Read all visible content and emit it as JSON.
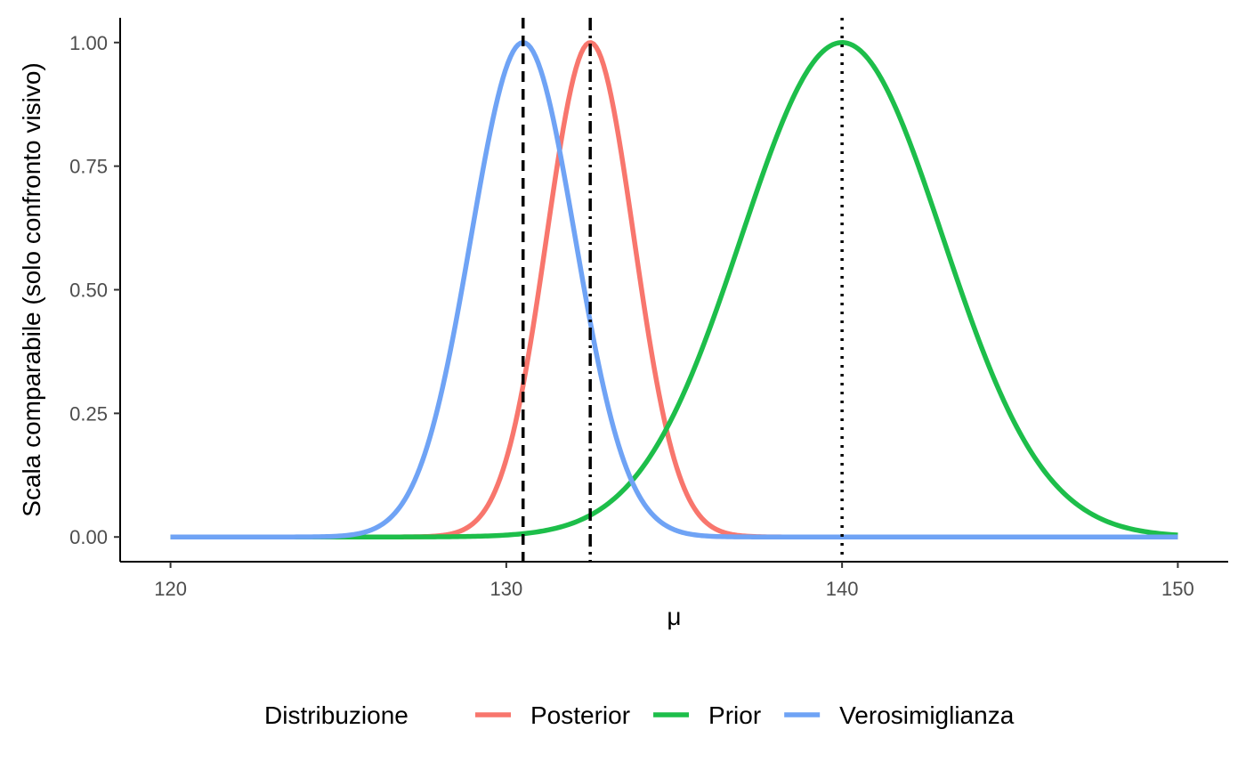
{
  "chart_data": {
    "type": "line",
    "title": "",
    "xlabel": "μ",
    "ylabel": "Scala comparabile (solo confronto visivo)",
    "xlim": [
      118.5,
      151.5
    ],
    "ylim": [
      -0.05,
      1.05
    ],
    "x_ticks": [
      120,
      130,
      140,
      150
    ],
    "x_tick_labels": [
      "120",
      "130",
      "140",
      "150"
    ],
    "y_ticks": [
      0,
      0.25,
      0.5,
      0.75,
      1
    ],
    "y_tick_labels": [
      "0.00",
      "0.25",
      "0.50",
      "0.75",
      "1.00"
    ],
    "x_range": [
      120,
      150
    ],
    "grid": false,
    "legend": {
      "title": "Distribuzione",
      "placement": "bottom"
    },
    "series": [
      {
        "name": "Posterior",
        "color": "#F8766D",
        "mean": 132.5,
        "sd": 1.3,
        "shape": "normal-scaled-to-peak-1"
      },
      {
        "name": "Prior",
        "color": "#1DBE4A",
        "mean": 140,
        "sd": 3.0,
        "shape": "normal-scaled-to-peak-1"
      },
      {
        "name": "Verosimiglianza",
        "color": "#6FA3F5",
        "mean": 130.5,
        "sd": 1.55,
        "shape": "normal-scaled-to-peak-1"
      }
    ],
    "vlines": [
      {
        "x": 130.5,
        "style": "dashed",
        "color": "#000000"
      },
      {
        "x": 132.5,
        "style": "dashdot",
        "color": "#000000"
      },
      {
        "x": 140,
        "style": "dotted",
        "color": "#000000"
      }
    ]
  }
}
